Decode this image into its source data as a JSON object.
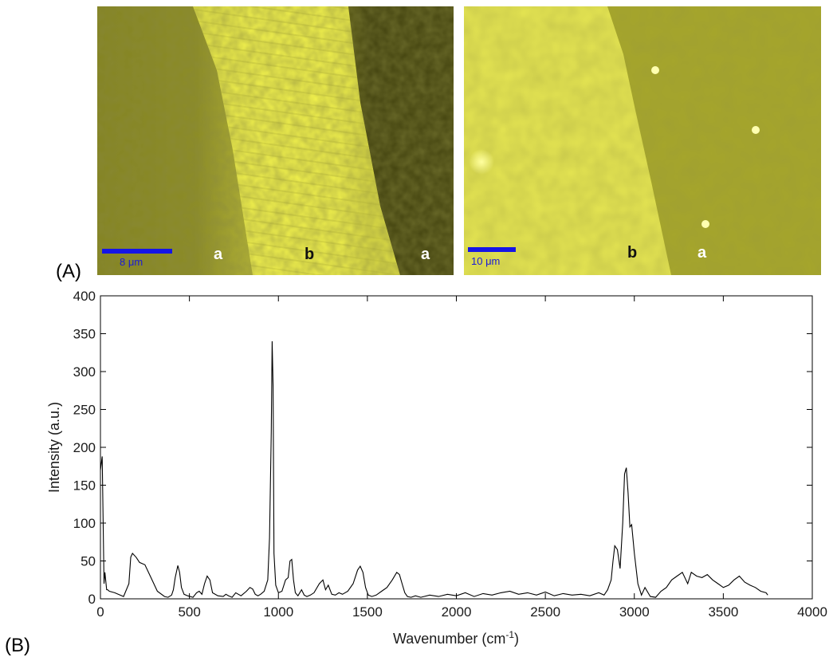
{
  "figure": {
    "panel_a_label": "(A)",
    "panel_b_label": "(B)",
    "micrographs": [
      {
        "scale_bar_label": "8 μm",
        "scale_bar_length_um": 8,
        "region_labels": [
          "a",
          "b",
          "a"
        ]
      },
      {
        "scale_bar_label": "10 μm",
        "scale_bar_length_um": 10,
        "region_labels": [
          "b",
          "a"
        ]
      }
    ],
    "colors": {
      "micrograph_base": "#e8e84a",
      "micrograph_dark": "#6a6a18",
      "scale_bar": "#1515e6",
      "spectrum_line": "#000000"
    }
  },
  "chart_data": {
    "type": "line",
    "xlabel": "Wavenumber (cm",
    "xlabel_superscript": "-1",
    "xlabel_suffix": ")",
    "ylabel": "Intensity (a.u.)",
    "xlim": [
      0,
      4000
    ],
    "ylim": [
      0,
      400
    ],
    "xticks": [
      0,
      500,
      1000,
      1500,
      2000,
      2500,
      3000,
      3500,
      4000
    ],
    "yticks": [
      0,
      50,
      100,
      150,
      200,
      250,
      300,
      350,
      400
    ],
    "grid": false,
    "series": [
      {
        "x": [
          0,
          10,
          20,
          25,
          35,
          40,
          50,
          80,
          110,
          130,
          160,
          170,
          180,
          200,
          220,
          250,
          280,
          320,
          360,
          380,
          400,
          410,
          420,
          435,
          445,
          455,
          470,
          490,
          520,
          540,
          555,
          570,
          585,
          600,
          615,
          630,
          660,
          690,
          705,
          720,
          740,
          760,
          790,
          820,
          840,
          855,
          870,
          885,
          900,
          920,
          940,
          950,
          960,
          965,
          970,
          975,
          985,
          1000,
          1020,
          1040,
          1055,
          1065,
          1075,
          1085,
          1095,
          1110,
          1130,
          1145,
          1160,
          1180,
          1200,
          1230,
          1250,
          1265,
          1280,
          1300,
          1320,
          1340,
          1360,
          1390,
          1420,
          1445,
          1460,
          1475,
          1490,
          1505,
          1525,
          1550,
          1580,
          1610,
          1640,
          1665,
          1680,
          1695,
          1710,
          1725,
          1745,
          1770,
          1800,
          1850,
          1900,
          1950,
          2000,
          2050,
          2100,
          2150,
          2200,
          2250,
          2300,
          2350,
          2400,
          2450,
          2500,
          2550,
          2600,
          2650,
          2700,
          2750,
          2800,
          2830,
          2850,
          2870,
          2880,
          2890,
          2905,
          2920,
          2935,
          2945,
          2955,
          2965,
          2975,
          2985,
          3000,
          3020,
          3040,
          3060,
          3090,
          3120,
          3150,
          3180,
          3210,
          3240,
          3270,
          3300,
          3320,
          3350,
          3380,
          3410,
          3440,
          3470,
          3500,
          3530,
          3560,
          3590,
          3620,
          3650,
          3680,
          3710,
          3740,
          3750
        ],
        "y": [
          170,
          188,
          20,
          35,
          12,
          12,
          10,
          8,
          5,
          3,
          20,
          55,
          60,
          55,
          48,
          45,
          30,
          10,
          3,
          2,
          5,
          12,
          28,
          44,
          35,
          15,
          6,
          4,
          2,
          8,
          10,
          6,
          20,
          30,
          25,
          8,
          4,
          3,
          6,
          4,
          2,
          8,
          4,
          10,
          15,
          13,
          6,
          4,
          6,
          10,
          25,
          80,
          220,
          340,
          280,
          60,
          18,
          8,
          10,
          25,
          28,
          50,
          52,
          25,
          8,
          4,
          12,
          5,
          3,
          5,
          8,
          20,
          25,
          12,
          18,
          6,
          5,
          8,
          6,
          10,
          20,
          38,
          43,
          35,
          15,
          5,
          3,
          5,
          10,
          15,
          25,
          35,
          32,
          20,
          8,
          3,
          2,
          4,
          2,
          5,
          3,
          6,
          4,
          8,
          3,
          7,
          5,
          8,
          10,
          6,
          8,
          5,
          9,
          4,
          7,
          5,
          6,
          4,
          8,
          5,
          12,
          25,
          50,
          70,
          65,
          40,
          100,
          165,
          173,
          140,
          95,
          98,
          60,
          20,
          5,
          15,
          3,
          2,
          10,
          15,
          25,
          30,
          35,
          20,
          35,
          30,
          28,
          32,
          25,
          20,
          15,
          18,
          25,
          30,
          22,
          18,
          15,
          10,
          8,
          5
        ]
      }
    ]
  }
}
